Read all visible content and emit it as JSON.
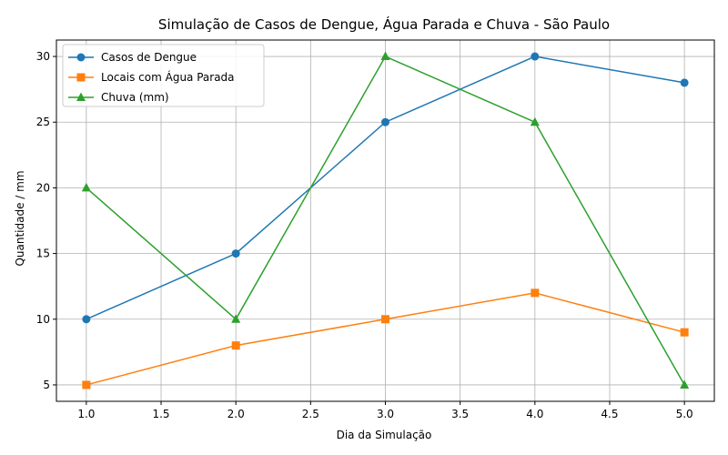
{
  "chart_data": {
    "type": "line",
    "title": "Simulação de Casos de Dengue, Água Parada e Chuva - São Paulo",
    "xlabel": "Dia da Simulação",
    "ylabel": "Quantidade / mm",
    "x": [
      1,
      2,
      3,
      4,
      5
    ],
    "xlim": [
      0.8,
      5.2
    ],
    "ylim": [
      3.75,
      31.25
    ],
    "xticks": [
      1.0,
      1.5,
      2.0,
      2.5,
      3.0,
      3.5,
      4.0,
      4.5,
      5.0
    ],
    "xtick_labels": [
      "1.0",
      "1.5",
      "2.0",
      "2.5",
      "3.0",
      "3.5",
      "4.0",
      "4.5",
      "5.0"
    ],
    "yticks": [
      5,
      10,
      15,
      20,
      25,
      30
    ],
    "ytick_labels": [
      "5",
      "10",
      "15",
      "20",
      "25",
      "30"
    ],
    "grid": true,
    "legend_position": "top-left",
    "series": [
      {
        "name": "Casos de Dengue",
        "values": [
          10,
          15,
          25,
          30,
          28
        ],
        "color": "#1f77b4",
        "marker": "circle"
      },
      {
        "name": "Locais com Água Parada",
        "values": [
          5,
          8,
          10,
          12,
          9
        ],
        "color": "#ff7f0e",
        "marker": "square"
      },
      {
        "name": "Chuva (mm)",
        "values": [
          20,
          10,
          30,
          25,
          5
        ],
        "color": "#2ca02c",
        "marker": "triangle"
      }
    ]
  }
}
